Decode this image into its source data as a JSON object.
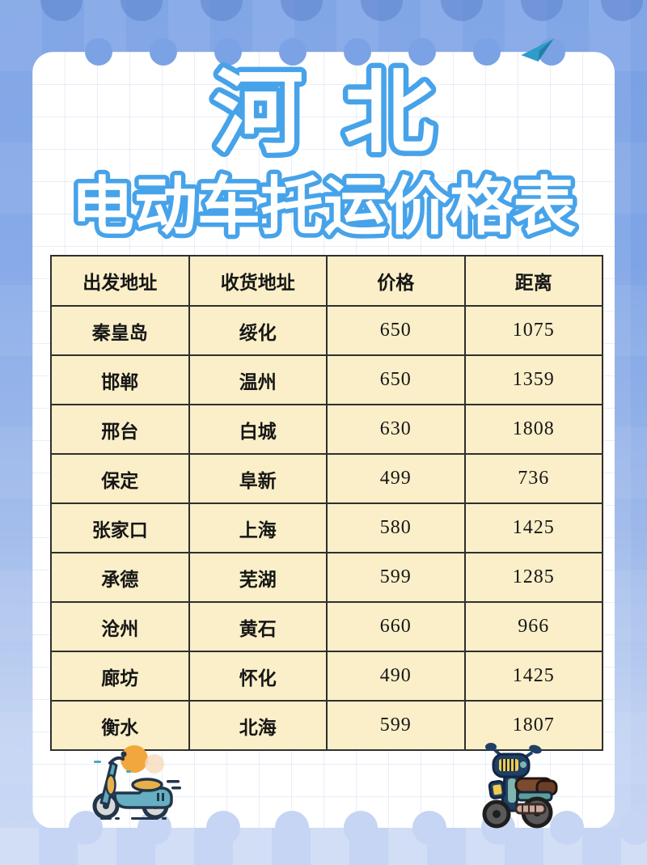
{
  "header": {
    "title_line1": "河北",
    "title_line2": "电动车托运价格表"
  },
  "table": {
    "headers": [
      "出发地址",
      "收货地址",
      "价格",
      "距离"
    ],
    "rows": [
      {
        "from": "秦皇岛",
        "to": "绥化",
        "price": "650",
        "distance": "1075"
      },
      {
        "from": "邯郸",
        "to": "温州",
        "price": "650",
        "distance": "1359"
      },
      {
        "from": "邢台",
        "to": "白城",
        "price": "630",
        "distance": "1808"
      },
      {
        "from": "保定",
        "to": "阜新",
        "price": "499",
        "distance": "736"
      },
      {
        "from": "张家口",
        "to": "上海",
        "price": "580",
        "distance": "1425"
      },
      {
        "from": "承德",
        "to": "芜湖",
        "price": "599",
        "distance": "1285"
      },
      {
        "from": "沧州",
        "to": "黄石",
        "price": "660",
        "distance": "966"
      },
      {
        "from": "廊坊",
        "to": "怀化",
        "price": "490",
        "distance": "1425"
      },
      {
        "from": "衡水",
        "to": "北海",
        "price": "599",
        "distance": "1807"
      }
    ]
  },
  "icons": {
    "left_illustration": "scooter-icon",
    "right_illustration": "motorcycle-icon",
    "sun": "sun-icon",
    "plane": "paper-plane-icon"
  },
  "colors": {
    "accent_blue": "#47A3E9",
    "background_top": "#79A0E4",
    "background_bottom": "#C8D7F4",
    "card": "#FFFFFF",
    "cell_background": "#FAEFC8",
    "cell_border": "#2F2F2F",
    "sun_orange": "#F1A73D",
    "scooter_teal": "#5FA8BC",
    "motorcycle_navy": "#1F3F66",
    "seat_brown": "#7C4A2E"
  }
}
